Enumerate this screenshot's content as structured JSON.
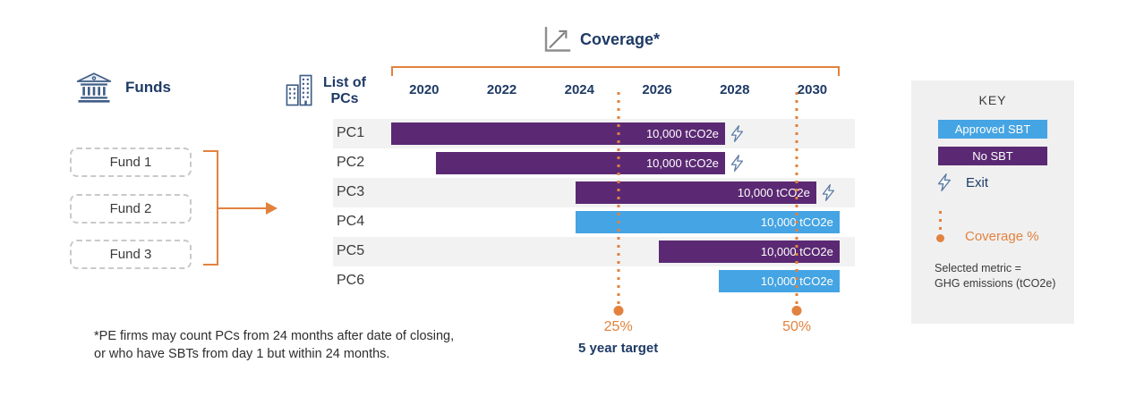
{
  "header": {
    "coverage_title": "Coverage*"
  },
  "funds": {
    "heading": "Funds",
    "items": [
      {
        "label": "Fund 1"
      },
      {
        "label": "Fund 2"
      },
      {
        "label": "Fund 3"
      }
    ]
  },
  "pc_list": {
    "heading_line1": "List of",
    "heading_line2": "PCs"
  },
  "chart_data": {
    "type": "bar",
    "subtype": "gantt-timeline",
    "title": "Coverage*",
    "x_axis": {
      "tick_years": [
        2020,
        2022,
        2024,
        2026,
        2028,
        2030
      ],
      "range": [
        2019.15,
        2030.75
      ],
      "grid": false
    },
    "rows": [
      {
        "pc": "PC1",
        "status": "no_sbt",
        "start": 2019.15,
        "end": 2027.75,
        "value_label": "10,000 tCO2e",
        "exit": true
      },
      {
        "pc": "PC2",
        "status": "no_sbt",
        "start": 2020.3,
        "end": 2027.75,
        "value_label": "10,000 tCO2e",
        "exit": true
      },
      {
        "pc": "PC3",
        "status": "no_sbt",
        "start": 2023.9,
        "end": 2030.1,
        "value_label": "10,000 tCO2e",
        "exit": true
      },
      {
        "pc": "PC4",
        "status": "approved_sbt",
        "start": 2023.9,
        "end": 2030.7,
        "value_label": "10,000 tCO2e",
        "exit": false
      },
      {
        "pc": "PC5",
        "status": "no_sbt",
        "start": 2026.05,
        "end": 2030.7,
        "value_label": "10,000 tCO2e",
        "exit": false
      },
      {
        "pc": "PC6",
        "status": "approved_sbt",
        "start": 2027.6,
        "end": 2030.7,
        "value_label": "10,000 tCO2e",
        "exit": false
      }
    ],
    "coverage_markers": [
      {
        "year": 2025.0,
        "label": "25%",
        "sublabel": "5 year target"
      },
      {
        "year": 2029.6,
        "label": "50%",
        "sublabel": ""
      }
    ],
    "legend_position": "right",
    "colors": {
      "approved_sbt": "#45a4e3",
      "no_sbt": "#5b2973",
      "coverage": "#e2823e",
      "axis_text": "#1e3a66"
    }
  },
  "key_panel": {
    "title": "KEY",
    "approved_label": "Approved SBT",
    "no_sbt_label": "No SBT",
    "exit_label": "Exit",
    "coverage_label": "Coverage %",
    "metric_line1": "Selected metric =",
    "metric_line2": "GHG emissions (tCO2e)"
  },
  "footnote": {
    "line1": "*PE firms may count PCs from 24 months after date of closing,",
    "line2": "or who have SBTs from day 1 but within 24 months."
  }
}
